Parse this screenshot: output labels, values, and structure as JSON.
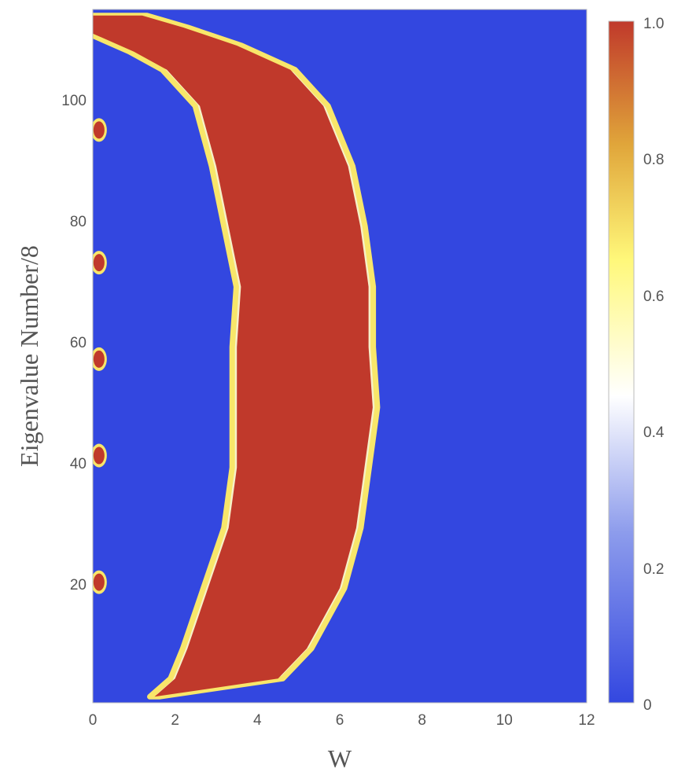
{
  "chart_data": {
    "type": "heatmap",
    "title": "",
    "xlabel": "W",
    "ylabel": "Eigenvalue Number/8",
    "xlim": [
      0,
      12
    ],
    "ylim": [
      1,
      116
    ],
    "x_ticks": [
      "0",
      "2",
      "4",
      "6",
      "8",
      "10",
      "12"
    ],
    "y_ticks": [
      "20",
      "40",
      "60",
      "80",
      "100"
    ],
    "colorbar": {
      "range": [
        0,
        1
      ],
      "ticks": [
        "0",
        "0.2",
        "0.4",
        "0.6",
        "0.8",
        "1.0"
      ],
      "colors": [
        "#3347e0",
        "#ffffff",
        "#fff87a",
        "#e0a53a",
        "#c0392b"
      ]
    },
    "high_value_band": {
      "value": 1.0,
      "left_edge_w": [
        [
          2,
          1.5
        ],
        [
          5,
          2.0
        ],
        [
          10,
          2.3
        ],
        [
          20,
          2.8
        ],
        [
          30,
          3.3
        ],
        [
          40,
          3.5
        ],
        [
          50,
          3.5
        ],
        [
          60,
          3.5
        ],
        [
          70,
          3.6
        ],
        [
          80,
          3.3
        ],
        [
          90,
          3.0
        ],
        [
          100,
          2.6
        ],
        [
          106,
          1.8
        ],
        [
          109,
          1.0
        ],
        [
          112,
          0.0
        ],
        [
          115,
          0.0
        ]
      ],
      "right_edge_w": [
        [
          2,
          1.5
        ],
        [
          5,
          4.5
        ],
        [
          10,
          5.2
        ],
        [
          20,
          6.0
        ],
        [
          30,
          6.4
        ],
        [
          40,
          6.6
        ],
        [
          50,
          6.8
        ],
        [
          60,
          6.7
        ],
        [
          70,
          6.7
        ],
        [
          80,
          6.5
        ],
        [
          90,
          6.2
        ],
        [
          100,
          5.6
        ],
        [
          106,
          4.8
        ],
        [
          110,
          3.5
        ],
        [
          113,
          2.2
        ],
        [
          115,
          1.2
        ]
      ]
    },
    "edge_spots": [
      {
        "w": 0.15,
        "eig": 21,
        "value": 1.0
      },
      {
        "w": 0.15,
        "eig": 42,
        "value": 1.0
      },
      {
        "w": 0.15,
        "eig": 58,
        "value": 1.0
      },
      {
        "w": 0.15,
        "eig": 74,
        "value": 1.0
      },
      {
        "w": 0.15,
        "eig": 96,
        "value": 1.0
      }
    ]
  }
}
